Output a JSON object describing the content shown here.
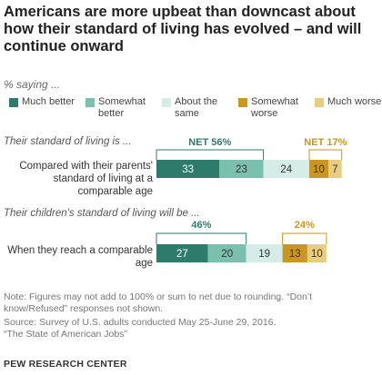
{
  "title": "Americans are more upbeat than downcast about how their standard of living has evolved – and will continue onward",
  "subtitle": "% saying ...",
  "legend": [
    {
      "label": "Much better",
      "color": "#2e7b6b"
    },
    {
      "label": "Somewhat better",
      "color": "#7bbfae"
    },
    {
      "label": "About the same",
      "color": "#d5ede6"
    },
    {
      "label": "Somewhat worse",
      "color": "#c9961f"
    },
    {
      "label": "Much worse",
      "color": "#e8cc7f"
    }
  ],
  "chart_data": {
    "type": "bar",
    "orientation": "horizontal",
    "stacked": true,
    "title": "Americans are more upbeat than downcast about how their standard of living has evolved – and will continue onward",
    "groups": [
      {
        "section_label": "Their standard of living is ...",
        "category": "Compared with their parents' standard of living at a comparable age",
        "values": [
          33,
          23,
          24,
          10,
          7
        ],
        "net_better": {
          "label": "NET 56%",
          "value": 56
        },
        "net_worse": {
          "label": "NET 17%",
          "value": 17
        }
      },
      {
        "section_label": "Their children's standard of living will be ...",
        "category": "When they reach a comparable age",
        "values": [
          27,
          20,
          19,
          13,
          10
        ],
        "net_better": {
          "label": "46%",
          "value": 46
        },
        "net_worse": {
          "label": "24%",
          "value": 24
        }
      }
    ],
    "series": [
      "Much better",
      "Somewhat better",
      "About the same",
      "Somewhat worse",
      "Much worse"
    ],
    "colors": [
      "#2e7b6b",
      "#7bbfae",
      "#d5ede6",
      "#c9961f",
      "#e8cc7f"
    ],
    "label_colors": [
      "#ffffff",
      "#333333",
      "#333333",
      "#333333",
      "#333333"
    ],
    "net_better_color": "#2e7b6b",
    "net_worse_color": "#c9961f",
    "grid": false,
    "legend_position": "top"
  },
  "note": "Note: Figures may not add to 100% or sum to net due to rounding. “Don’t know/Refused” responses not shown.",
  "source_lines": [
    "Source: Survey of U.S. adults conducted May 25-June 29, 2016.",
    "“The State of American Jobs”"
  ],
  "brand": "PEW RESEARCH CENTER"
}
